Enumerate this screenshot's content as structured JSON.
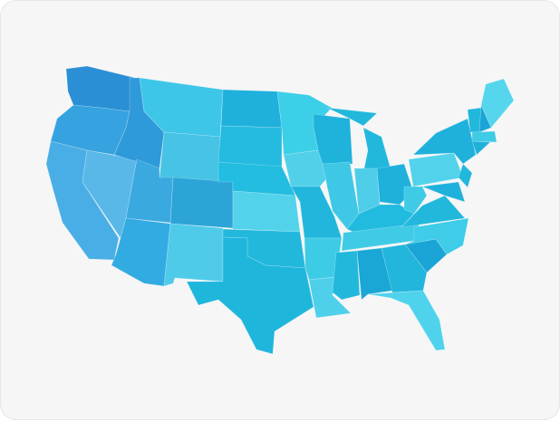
{
  "map": {
    "colors": {
      "background": "#f6f6f6",
      "darkest": "#2a8fd4",
      "dark": "#1fb3dc",
      "medium": "#3cc4e6",
      "light": "#55d3ec"
    }
  }
}
